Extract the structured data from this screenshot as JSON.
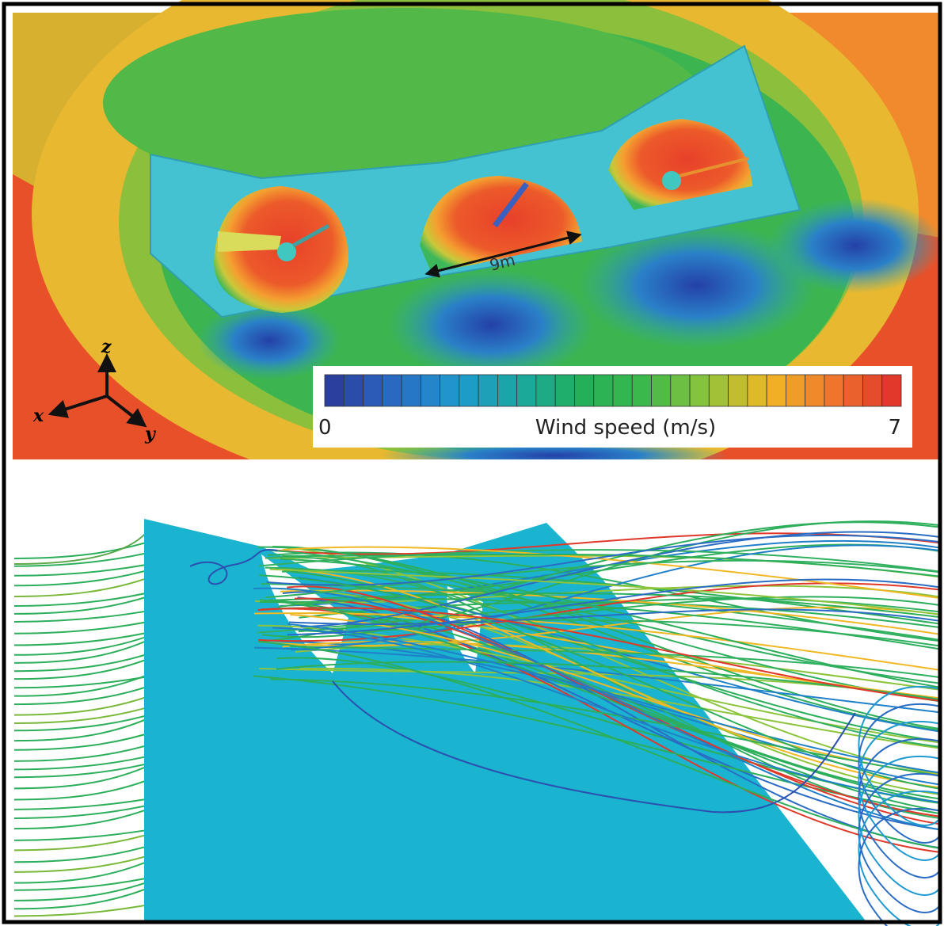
{
  "top_panel": {
    "dimension_label": "9m",
    "axes": {
      "z": "z",
      "x": "x",
      "y": "y"
    },
    "colorbar": {
      "title": "Wind speed (m/s)",
      "min": 0,
      "max": 7,
      "colors": [
        "#2a3f9e",
        "#2a6cc4",
        "#1f9ad0",
        "#1aa8a0",
        "#22b05a",
        "#3cb84a",
        "#8cc43c",
        "#f0b824",
        "#f07a2c",
        "#e0382a"
      ]
    }
  }
}
